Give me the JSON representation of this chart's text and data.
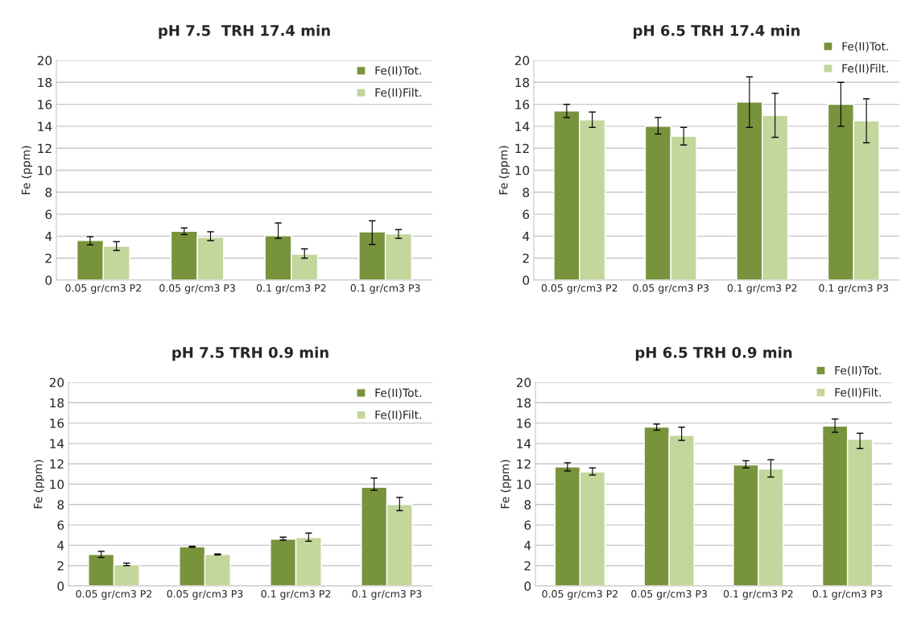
{
  "chart_data": [
    {
      "type": "bar",
      "title": "pH 7.5  TRH 17.4 min",
      "ylabel": "Fe (ppm)",
      "categories": [
        "0.05 gr/cm3 P2",
        "0.05 gr/cm3 P3",
        "0.1 gr/cm3 P2",
        "0.1 gr/cm3 P3"
      ],
      "ylim": [
        0,
        20
      ],
      "yticks": [
        0,
        2,
        4,
        6,
        8,
        10,
        12,
        14,
        16,
        18,
        20
      ],
      "grid": "y",
      "legend": "top right",
      "series": [
        {
          "name": "Fe(II)Tot.",
          "color": "#77933c",
          "values": [
            3.6,
            4.45,
            4.05,
            4.4
          ],
          "errors": [
            [
              3.2,
              3.95
            ],
            [
              4.15,
              4.75
            ],
            [
              3.8,
              5.2
            ],
            [
              3.25,
              5.4
            ]
          ]
        },
        {
          "name": "Fe(II)Filt.",
          "color": "#c3d69b",
          "values": [
            3.1,
            3.9,
            2.35,
            4.2
          ],
          "errors": [
            [
              2.7,
              3.5
            ],
            [
              3.6,
              4.4
            ],
            [
              2.0,
              2.85
            ],
            [
              3.8,
              4.6
            ]
          ]
        }
      ]
    },
    {
      "type": "bar",
      "title": "pH 6.5 TRH 17.4 min",
      "ylabel": "Fe (ppm)",
      "categories": [
        "0.05 gr/cm3 P2",
        "0.05 gr/cm3 P3",
        "0.1 gr/cm3 P2",
        "0.1 gr/cm3 P3"
      ],
      "ylim": [
        0,
        20
      ],
      "yticks": [
        0,
        2,
        4,
        6,
        8,
        10,
        12,
        14,
        16,
        18,
        20
      ],
      "grid": "y",
      "legend": "top right",
      "series": [
        {
          "name": "Fe(II)Tot.",
          "color": "#77933c",
          "values": [
            15.4,
            14.0,
            16.2,
            16.0
          ],
          "errors": [
            [
              14.8,
              16.0
            ],
            [
              13.3,
              14.8
            ],
            [
              13.9,
              18.5
            ],
            [
              14.0,
              18.0
            ]
          ]
        },
        {
          "name": "Fe(II)Filt.",
          "color": "#c3d69b",
          "values": [
            14.6,
            13.1,
            15.0,
            14.5
          ],
          "errors": [
            [
              13.9,
              15.3
            ],
            [
              12.3,
              13.9
            ],
            [
              13.0,
              17.0
            ],
            [
              12.5,
              16.5
            ]
          ]
        }
      ]
    },
    {
      "type": "bar",
      "title": "pH 7.5 TRH 0.9 min",
      "ylabel": "Fe (ppm)",
      "categories": [
        "0.05 gr/cm3 P2",
        "0.05 gr/cm3 P3",
        "0.1 gr/cm3 P2",
        "0.1 gr/cm3 P3"
      ],
      "ylim": [
        0,
        20
      ],
      "yticks": [
        0,
        2,
        4,
        6,
        8,
        10,
        12,
        14,
        16,
        18,
        20
      ],
      "grid": "y",
      "legend": "top right",
      "series": [
        {
          "name": "Fe(II)Tot.",
          "color": "#77933c",
          "values": [
            3.1,
            3.85,
            4.6,
            9.7
          ],
          "errors": [
            [
              2.8,
              3.4
            ],
            [
              3.8,
              3.9
            ],
            [
              4.5,
              4.8
            ],
            [
              9.4,
              10.6
            ]
          ]
        },
        {
          "name": "Fe(II)Filt.",
          "color": "#c3d69b",
          "values": [
            2.1,
            3.1,
            4.75,
            8.0
          ],
          "errors": [
            [
              2.0,
              2.25
            ],
            [
              3.05,
              3.15
            ],
            [
              4.4,
              5.2
            ],
            [
              7.4,
              8.7
            ]
          ]
        }
      ]
    },
    {
      "type": "bar",
      "title": "pH 6.5 TRH 0.9 min",
      "ylabel": "Fe (ppm)",
      "categories": [
        "0.05 gr/cm3 P2",
        "0.05 gr/cm3 P3",
        "0.1 gr/cm3 P2",
        "0.1 gr/cm3 P3"
      ],
      "ylim": [
        0,
        20
      ],
      "yticks": [
        0,
        2,
        4,
        6,
        8,
        10,
        12,
        14,
        16,
        18,
        20
      ],
      "grid": "y",
      "legend": "top right",
      "series": [
        {
          "name": "Fe(II)Tot.",
          "color": "#77933c",
          "values": [
            11.7,
            15.6,
            11.9,
            15.7
          ],
          "errors": [
            [
              11.3,
              12.1
            ],
            [
              15.3,
              15.9
            ],
            [
              11.6,
              12.3
            ],
            [
              15.1,
              16.4
            ]
          ]
        },
        {
          "name": "Fe(II)Filt.",
          "color": "#c3d69b",
          "values": [
            11.2,
            14.8,
            11.5,
            14.4
          ],
          "errors": [
            [
              10.9,
              11.6
            ],
            [
              14.3,
              15.6
            ],
            [
              10.7,
              12.4
            ],
            [
              13.5,
              15.0
            ]
          ]
        }
      ]
    }
  ]
}
